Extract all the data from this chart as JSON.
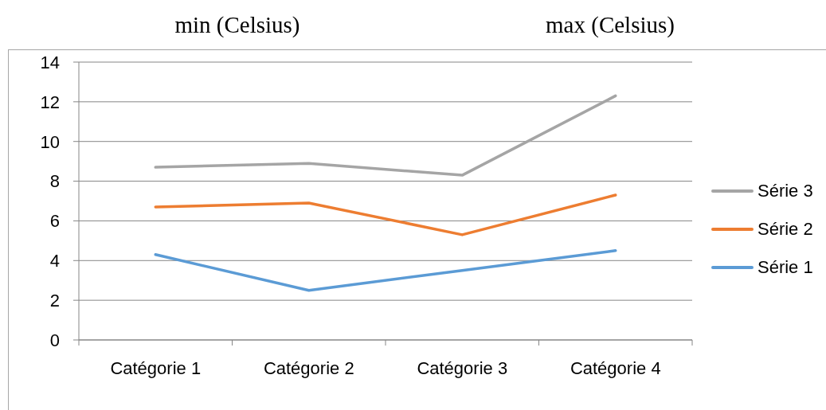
{
  "chart_data": {
    "type": "line",
    "annotations": [
      "min (Celsius)",
      "max (Celsius)"
    ],
    "categories": [
      "Catégorie 1",
      "Catégorie 2",
      "Catégorie 3",
      "Catégorie 4"
    ],
    "series": [
      {
        "name": "Série 1",
        "color": "#5b9bd5",
        "values": [
          4.3,
          2.5,
          3.5,
          4.5
        ]
      },
      {
        "name": "Série 2",
        "color": "#ed7d31",
        "values": [
          6.7,
          6.9,
          5.3,
          7.3
        ]
      },
      {
        "name": "Série 3",
        "color": "#a5a5a5",
        "values": [
          8.7,
          8.9,
          8.3,
          12.3
        ]
      }
    ],
    "ylim": [
      0,
      14
    ],
    "yticks": [
      0,
      2,
      4,
      6,
      8,
      10,
      12,
      14
    ],
    "grid": "y",
    "legend": "right",
    "marker": "none",
    "line_style": "solid"
  }
}
